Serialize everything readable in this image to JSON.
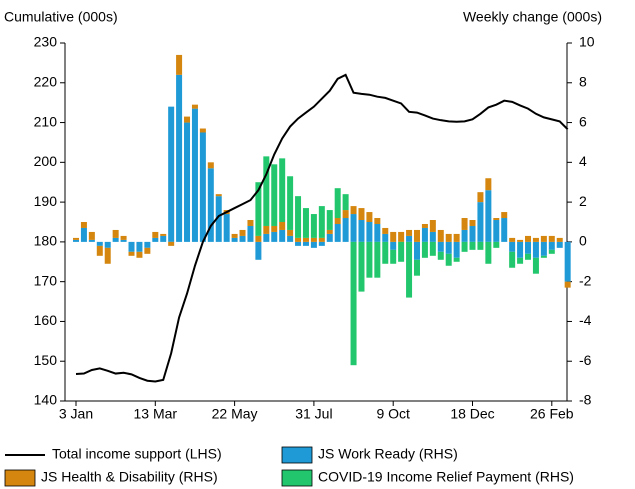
{
  "chart_data": {
    "type": "bar",
    "y_label": "Cumulative (000s)",
    "y2_label": "Weekly change (000s)",
    "categories": [
      "3 Jan",
      null,
      null,
      null,
      null,
      null,
      null,
      null,
      null,
      null,
      "13 Mar",
      null,
      null,
      null,
      null,
      null,
      null,
      null,
      null,
      null,
      "22 May",
      null,
      null,
      null,
      null,
      null,
      null,
      null,
      null,
      null,
      "31 Jul",
      null,
      null,
      null,
      null,
      null,
      null,
      null,
      null,
      null,
      "9 Oct",
      null,
      null,
      null,
      null,
      null,
      null,
      null,
      null,
      null,
      "18 Dec",
      null,
      null,
      null,
      null,
      null,
      null,
      null,
      null,
      null,
      "26 Feb",
      null,
      null
    ],
    "ylim": [
      140,
      230
    ],
    "yticks": [
      140,
      150,
      160,
      170,
      180,
      190,
      200,
      210,
      220,
      230
    ],
    "y2lim": [
      -8,
      10
    ],
    "y2ticks": [
      -8,
      -6,
      -4,
      -2,
      0,
      2,
      4,
      6,
      8,
      10
    ],
    "series": [
      {
        "name": "Total income support (LHS)",
        "type": "line",
        "color": "#000000",
        "values": [
          146.8,
          146.9,
          147.8,
          148.2,
          147.6,
          146.9,
          147.1,
          146.7,
          145.8,
          145.1,
          144.9,
          145.3,
          152,
          161,
          167,
          174,
          180,
          184,
          186.5,
          187.5,
          188.5,
          189.5,
          190.5,
          193,
          197,
          202,
          206,
          209,
          211,
          212.5,
          214,
          216,
          218,
          221,
          222,
          217.5,
          217.2,
          217,
          216.5,
          216.2,
          215.5,
          214.8,
          212.7,
          212.5,
          211.8,
          211,
          210.6,
          210.3,
          210.2,
          210.3,
          210.8,
          212.2,
          213.8,
          214.5,
          215.5,
          215.2,
          214.3,
          213.5,
          212.2,
          211.3,
          210.8,
          210.3,
          208.3
        ]
      },
      {
        "name": "JS Work Ready (RHS)",
        "type": "bar",
        "axis": "y2",
        "color": "#1f9ad6",
        "values": [
          0.1,
          0.7,
          0.1,
          -0.2,
          -0.3,
          0.2,
          0.1,
          -0.5,
          -0.5,
          -0.3,
          0.2,
          0.3,
          6.8,
          8.4,
          6.0,
          6.7,
          5.5,
          3.7,
          2.3,
          1.4,
          0.2,
          0.3,
          0.8,
          -0.9,
          0.4,
          0.5,
          0.6,
          0.3,
          -0.2,
          -0.2,
          -0.3,
          -0.2,
          0.4,
          0.9,
          1.2,
          1.4,
          1.1,
          1.0,
          0.9,
          0.4,
          -0.4,
          0.0,
          0.3,
          -0.9,
          0.7,
          0.5,
          -0.5,
          -0.6,
          -0.8,
          0.6,
          0.8,
          2.0,
          2.6,
          1.1,
          1.2,
          -0.5,
          -0.8,
          -0.6,
          -0.8,
          -0.7,
          -0.4,
          -0.3,
          -2.0
        ]
      },
      {
        "name": "JS Health & Disability (RHS)",
        "type": "bar",
        "axis": "y2",
        "color": "#d4860e",
        "values": [
          0.1,
          0.3,
          0.4,
          -0.5,
          -0.8,
          0.4,
          0.2,
          -0.2,
          -0.3,
          -0.3,
          0.3,
          0.1,
          -0.2,
          1.0,
          0.3,
          0.2,
          0.2,
          0.3,
          0.1,
          0.2,
          0.2,
          0.3,
          0.3,
          0.3,
          0.4,
          0.3,
          0.4,
          0.3,
          0.2,
          0.2,
          0.2,
          0.2,
          0.2,
          0.3,
          0.4,
          0.4,
          0.6,
          0.5,
          0.3,
          0.3,
          0.5,
          0.5,
          0.3,
          0.6,
          0.2,
          0.6,
          0.6,
          0.4,
          0.4,
          0.6,
          0.3,
          0.5,
          0.6,
          0.1,
          0.3,
          0.2,
          0.1,
          0.3,
          0.2,
          0.3,
          0.3,
          0.2,
          -0.3
        ]
      },
      {
        "name": "COVID-19 Income Relief Payment (RHS)",
        "type": "bar",
        "axis": "y2",
        "color": "#22c76d",
        "values": [
          0,
          0,
          0,
          0,
          0,
          0,
          0,
          0,
          0,
          0,
          0,
          0,
          0,
          0,
          0,
          0,
          0,
          0,
          0,
          0,
          0,
          0,
          0,
          2.7,
          3.5,
          3.1,
          3.2,
          2.7,
          2.1,
          1.5,
          1.2,
          1.6,
          1.0,
          1.5,
          0.8,
          -6.2,
          -2.5,
          -1.8,
          -1.8,
          -1.1,
          -0.7,
          -1.0,
          -2.8,
          -0.8,
          -0.8,
          -0.7,
          -0.4,
          -0.6,
          -0.2,
          -0.5,
          -0.4,
          -0.4,
          -1.1,
          -0.3,
          0,
          -0.8,
          -0.3,
          -0.3,
          -0.8,
          -0.1,
          -0.2,
          0,
          0
        ]
      }
    ]
  }
}
